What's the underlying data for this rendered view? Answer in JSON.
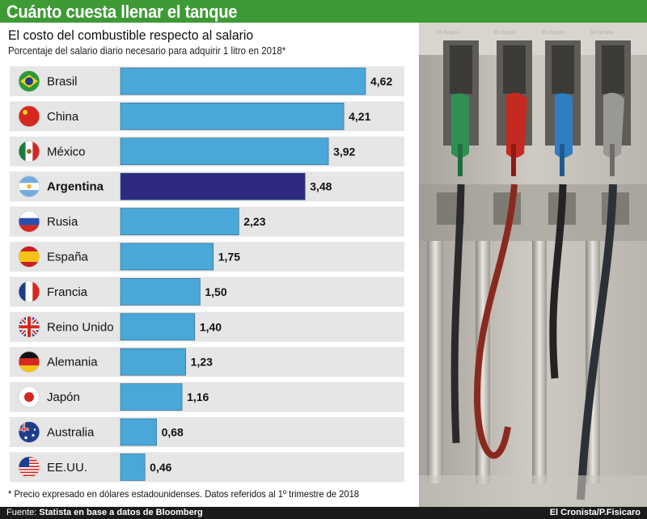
{
  "header": {
    "title": "Cuánto cuesta llenar el tanque",
    "subtitle": "El costo del combustible respecto al salario",
    "description": "Porcentaje del salario diario necesario para adquirir 1 litro en 2018*"
  },
  "footer": {
    "footnote": "* Precio expresado en dólares estadounidenses. Datos referidos al 1º trimestre de 2018",
    "source_prefix": "Fuente: ",
    "source_text": "Statista en base a datos de Bloomberg",
    "credit": "El Cronista/P.Fisicaro"
  },
  "colors": {
    "title_bg": "#3e9a35",
    "bar": "#4aa8d8",
    "bar_highlight": "#2d2a80",
    "row_bg": "#e6e6e6"
  },
  "chart_data": {
    "type": "bar",
    "orientation": "horizontal",
    "title": "Cuánto cuesta llenar el tanque",
    "subtitle": "El costo del combustible respecto al salario",
    "ylabel": "Porcentaje del salario diario necesario para adquirir 1 litro en 2018*",
    "xlim": [
      0,
      4.62
    ],
    "grid": false,
    "highlight": "Argentina",
    "categories": [
      "Brasil",
      "China",
      "México",
      "Argentina",
      "Rusia",
      "España",
      "Francia",
      "Reino Unido",
      "Alemania",
      "Japón",
      "Australia",
      "EE.UU."
    ],
    "values": [
      4.62,
      4.21,
      3.92,
      3.48,
      2.23,
      1.75,
      1.5,
      1.4,
      1.23,
      1.16,
      0.68,
      0.46
    ],
    "value_labels": [
      "4,62",
      "4,21",
      "3,92",
      "3,48",
      "2,23",
      "1,75",
      "1,50",
      "1,40",
      "1,23",
      "1,16",
      "0,68",
      "0,46"
    ],
    "flags": [
      "brazil-flag-icon",
      "china-flag-icon",
      "mexico-flag-icon",
      "argentina-flag-icon",
      "russia-flag-icon",
      "spain-flag-icon",
      "france-flag-icon",
      "uk-flag-icon",
      "germany-flag-icon",
      "japan-flag-icon",
      "australia-flag-icon",
      "usa-flag-icon"
    ]
  }
}
